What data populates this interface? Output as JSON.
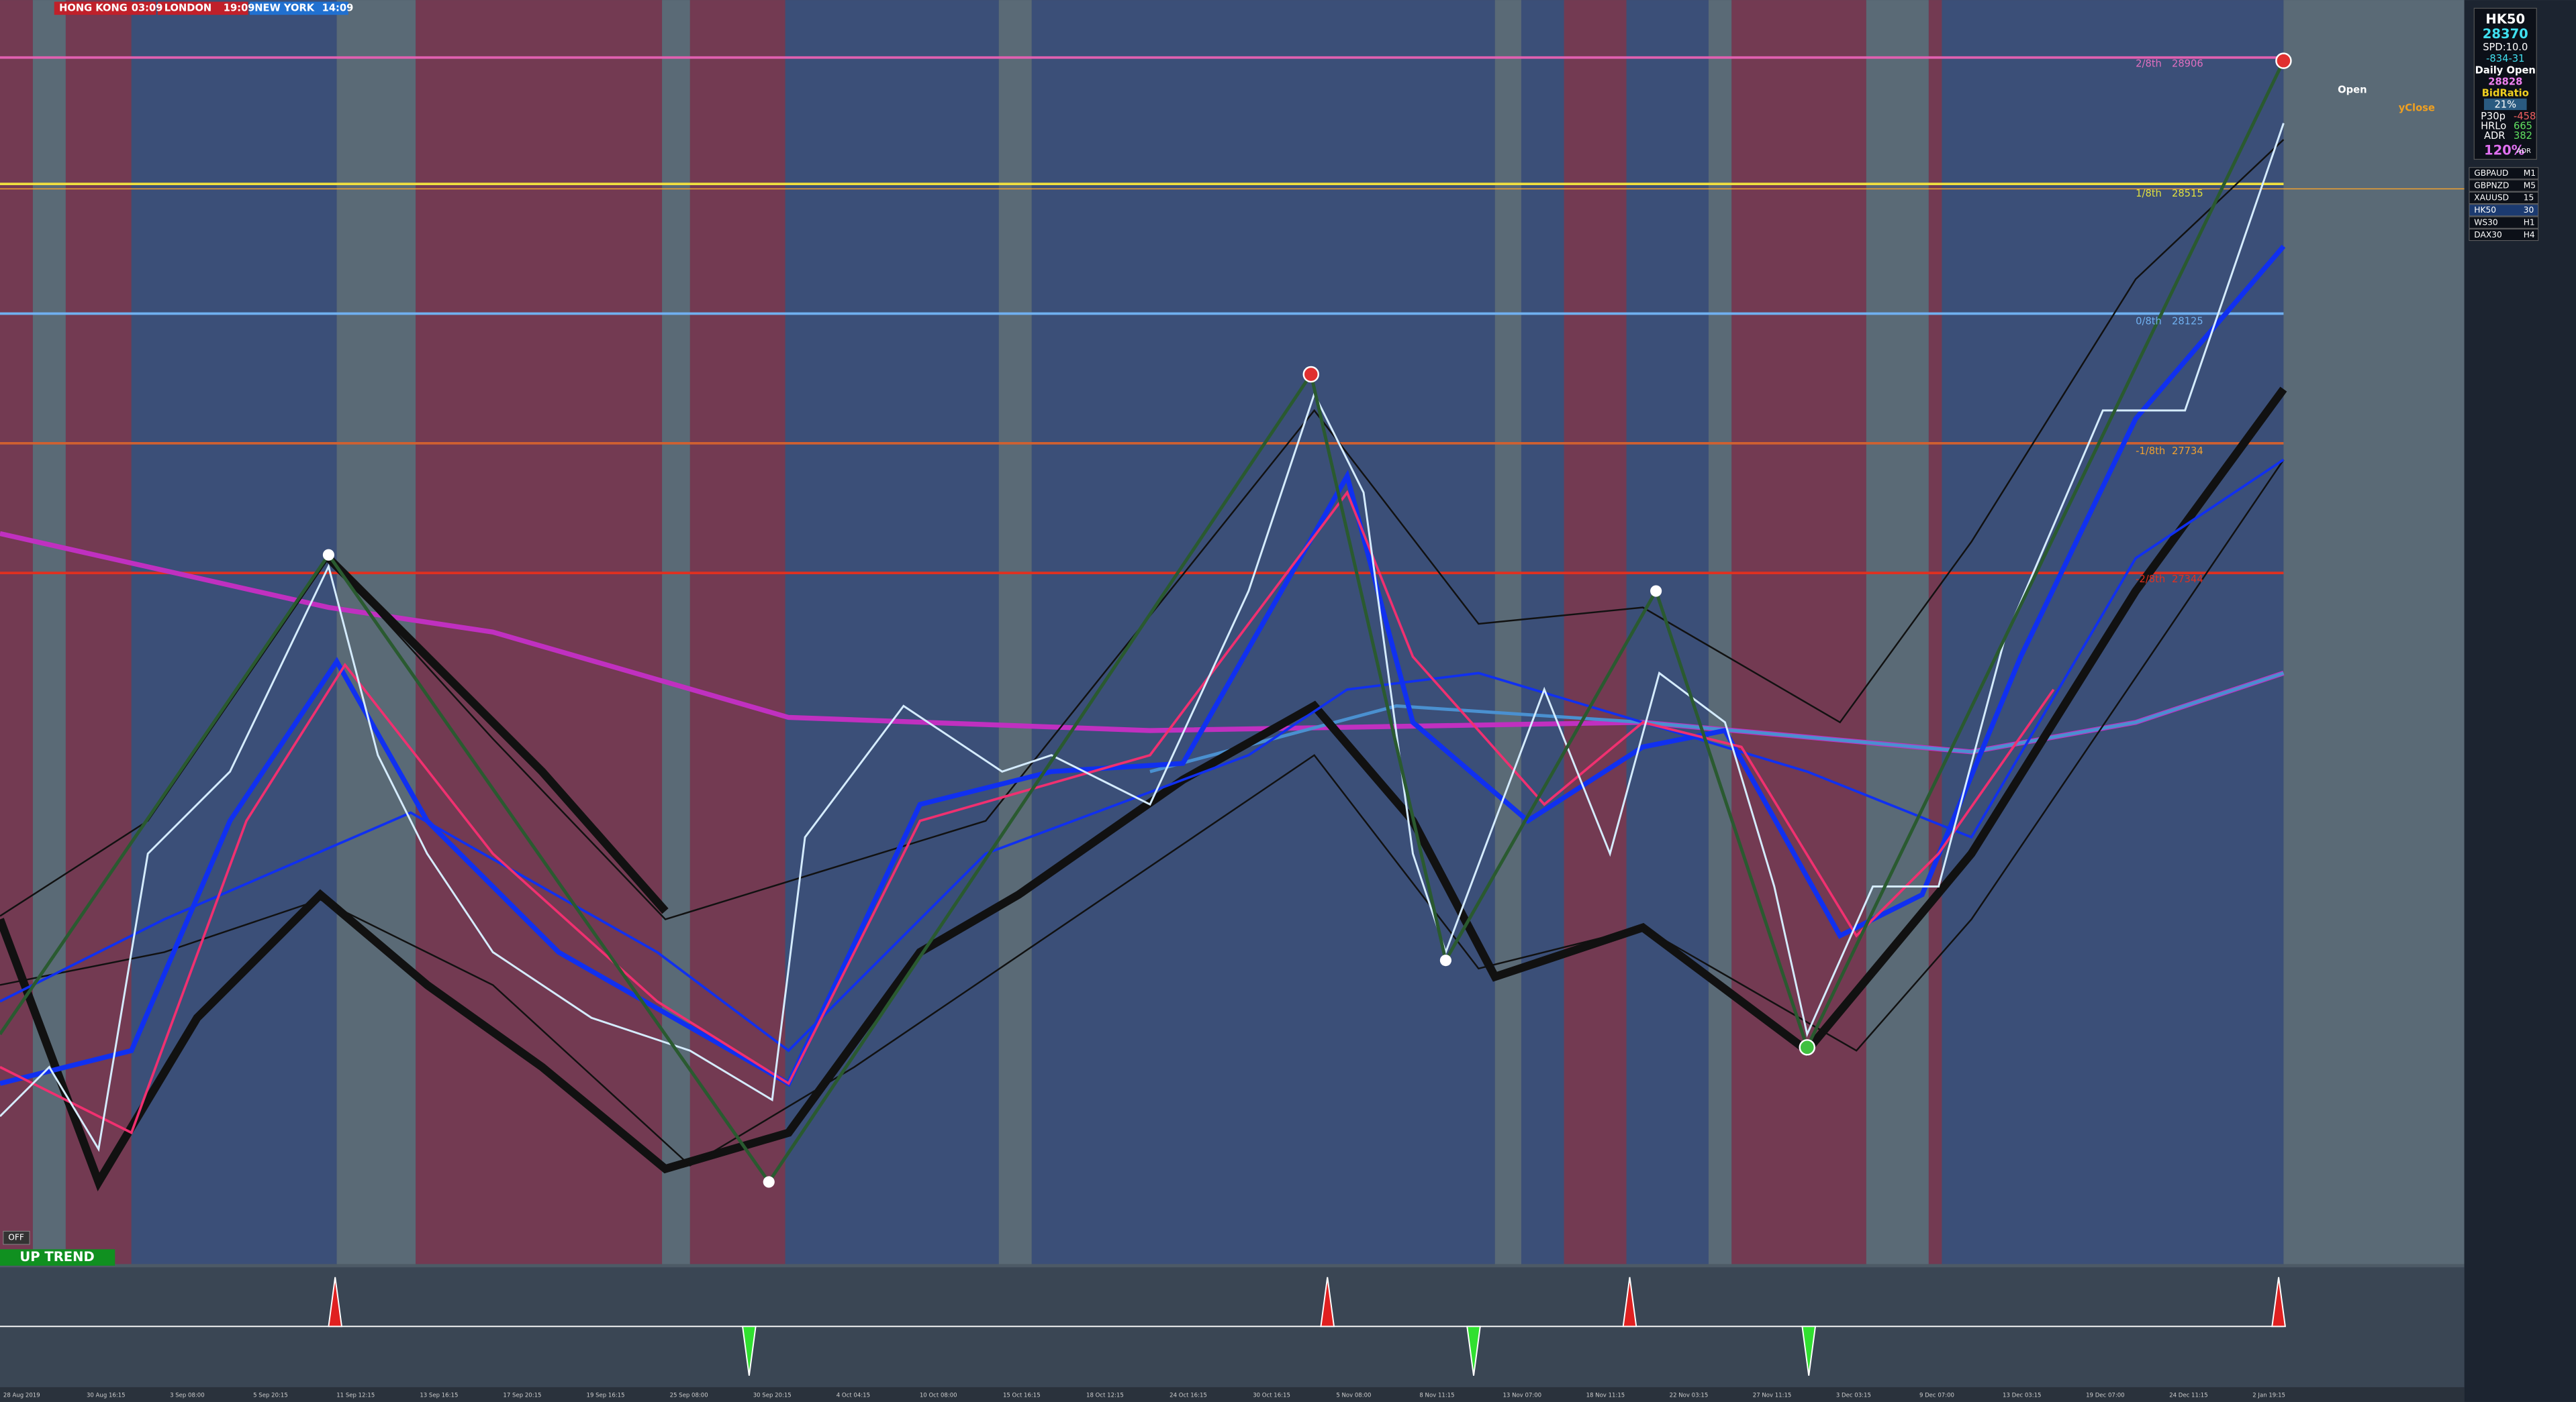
{
  "session_clocks": [
    {
      "city": "HONG KONG",
      "time": "03:09"
    },
    {
      "city": "LONDON",
      "time": "19:09"
    },
    {
      "city": "NEW YORK",
      "time": "14:09"
    }
  ],
  "levels": [
    {
      "label": "2/8th",
      "price": "28906"
    },
    {
      "label": "1/8th",
      "price": "28515"
    },
    {
      "label": "0/8th",
      "price": "28125"
    },
    {
      "label": "-1/8th",
      "price": "27734"
    },
    {
      "label": "-2/8th",
      "price": "27344"
    }
  ],
  "right_labels": {
    "open": "Open",
    "yclose": "yClose"
  },
  "info_panel": {
    "symbol": "HK50",
    "price": "28370",
    "spread": "SPD:10.0",
    "change": "-834-31",
    "daily_open_label": "Daily Open",
    "daily_open": "28828",
    "bid_ratio_label": "BidRatio",
    "bid_ratio": "21%",
    "p30p_label": "P30p",
    "p30p": "-458",
    "hrlo_label": "HRLo",
    "hrlo": "665",
    "adr_label": "ADR",
    "adr": "382",
    "adr_pct": "120%",
    "adr_pct_unit": "ADR"
  },
  "symbols": [
    {
      "symbol": "GBPAUD",
      "tf": "M1"
    },
    {
      "symbol": "GBPNZD",
      "tf": "M5"
    },
    {
      "symbol": "XAUUSD",
      "tf": "15"
    },
    {
      "symbol": "HK50",
      "tf": "30"
    },
    {
      "symbol": "WS30",
      "tf": "H1"
    },
    {
      "symbol": "DAX30",
      "tf": "H4"
    }
  ],
  "trend": "UP TREND",
  "toggle": "OFF",
  "date_axis": [
    "28 Aug 2019",
    "30 Aug 16:15",
    "3 Sep 08:00",
    "5 Sep 20:15",
    "11 Sep 12:15",
    "13 Sep 16:15",
    "17 Sep 20:15",
    "19 Sep 16:15",
    "25 Sep 08:00",
    "30 Sep 20:15",
    "4 Oct 04:15",
    "10 Oct 08:00",
    "15 Oct 16:15",
    "18 Oct 12:15",
    "24 Oct 16:15",
    "30 Oct 16:15",
    "5 Nov 08:00",
    "8 Nov 11:15",
    "13 Nov 07:00",
    "18 Nov 11:15",
    "22 Nov 03:15",
    "27 Nov 11:15",
    "3 Dec 03:15",
    "9 Dec 07:00",
    "13 Dec 03:15",
    "19 Dec 07:00",
    "24 Dec 11:15",
    "2 Jan 19:15"
  ]
}
